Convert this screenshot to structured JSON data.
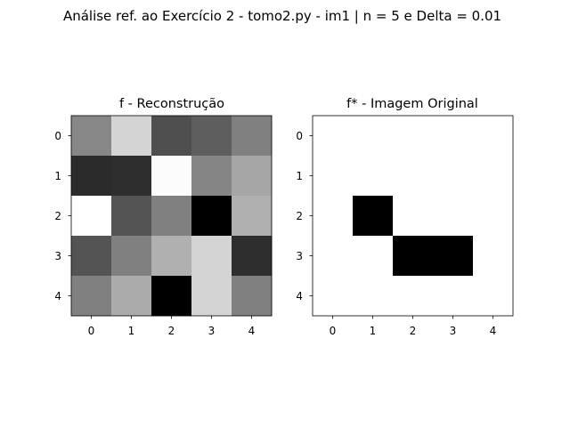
{
  "suptitle": "Análise ref. ao Exercício 2 - tomo2.py - im1 | n = 5 e Delta = 0.01",
  "chart_data": [
    {
      "type": "heatmap",
      "title": "f - Reconstrução",
      "colormap": "gray",
      "x_ticks": [
        "0",
        "1",
        "2",
        "3",
        "4"
      ],
      "y_ticks": [
        "0",
        "1",
        "2",
        "3",
        "4"
      ],
      "values": [
        [
          0.53,
          0.83,
          0.31,
          0.37,
          0.5
        ],
        [
          0.17,
          0.18,
          0.99,
          0.52,
          0.65
        ],
        [
          1.0,
          0.33,
          0.5,
          0.0,
          0.69
        ],
        [
          0.33,
          0.5,
          0.69,
          0.83,
          0.18
        ],
        [
          0.5,
          0.67,
          0.0,
          0.83,
          0.5
        ]
      ]
    },
    {
      "type": "heatmap",
      "title": "f* - Imagem Original",
      "colormap": "gray",
      "x_ticks": [
        "0",
        "1",
        "2",
        "3",
        "4"
      ],
      "y_ticks": [
        "0",
        "1",
        "2",
        "3",
        "4"
      ],
      "values": [
        [
          1,
          1,
          1,
          1,
          1
        ],
        [
          1,
          1,
          1,
          1,
          1
        ],
        [
          1,
          0,
          1,
          1,
          1
        ],
        [
          1,
          1,
          0,
          0,
          1
        ],
        [
          1,
          1,
          1,
          1,
          1
        ]
      ]
    }
  ]
}
